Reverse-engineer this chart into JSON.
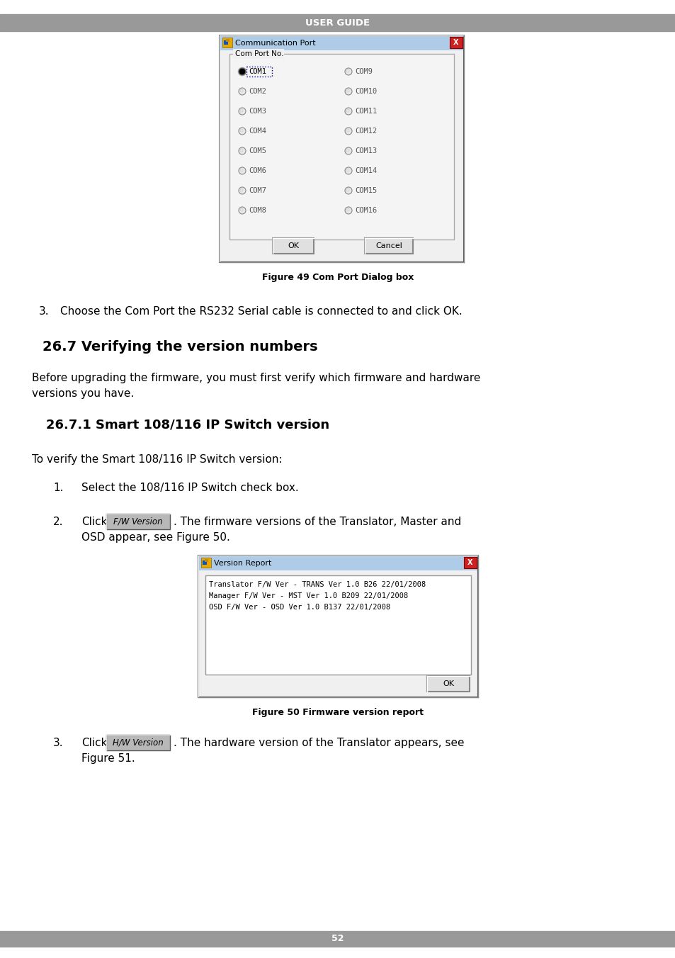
{
  "bg_color": "#ffffff",
  "header_color": "#999999",
  "header_text": "USER GUIDE",
  "header_text_color": "#ffffff",
  "footer_text": "52",
  "footer_color": "#999999",
  "footer_text_color": "#ffffff",
  "section_title": "26.7 Verifying the version numbers",
  "subsection_title": "26.7.1 Smart 108/116 IP Switch version",
  "para1_line1": "Before upgrading the firmware, you must first verify which firmware and hardware",
  "para1_line2": "versions you have.",
  "para2": "To verify the Smart 108/116 IP Switch version:",
  "item3_text": "Choose the Com Port the RS232 Serial cable is connected to and click OK.",
  "step1": "Select the 108/116 IP Switch check box.",
  "step2_prefix": "Click",
  "fw_button_label": "F/W Version",
  "step2_suffix_line1": ". The firmware versions of the Translator, Master and",
  "step2_suffix_line2": "OSD appear, see Figure 50.",
  "step3_prefix": "Click",
  "hw_button_label": "H/W Version",
  "step3_suffix_line1": ". The hardware version of the Translator appears, see",
  "step3_suffix_line2": "Figure 51.",
  "fig49_caption": "Figure 49 Com Port Dialog box",
  "fig50_caption": "Figure 50 Firmware version report",
  "com_dialog_title": "Communication Port",
  "com_port_label": "Com Port No.",
  "com_ports_left": [
    "COM1",
    "COM2",
    "COM3",
    "COM4",
    "COM5",
    "COM6",
    "COM7",
    "COM8"
  ],
  "com_ports_right": [
    "COM9",
    "COM10",
    "COM11",
    "COM12",
    "COM13",
    "COM14",
    "COM15",
    "COM16"
  ],
  "version_dialog_title": "Version Report",
  "version_lines": [
    "Translator F/W Ver - TRANS Ver 1.0 B26 22/01/2008",
    "Manager F/W Ver - MST Ver 1.0 B209 22/01/2008",
    "OSD F/W Ver - OSD Ver 1.0 B137 22/01/2008"
  ],
  "dialog_bg": "#f0f0f0",
  "dialog_title_bg_start": "#c8dff0",
  "dialog_title_bg_end": "#a0c4e0",
  "dialog_border": "#666666",
  "close_button_color": "#cc2222",
  "button_face": "#e0e0e0",
  "text_area_bg": "#ffffff"
}
